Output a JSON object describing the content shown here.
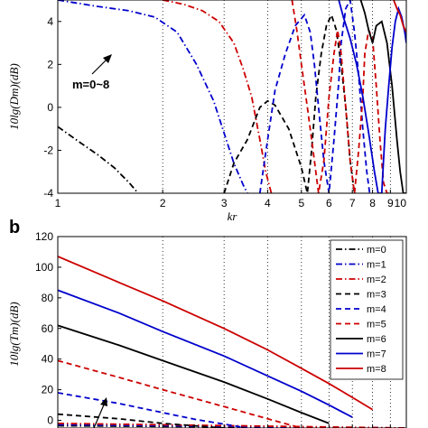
{
  "panel_labels": [
    "",
    "b"
  ],
  "chart_data": [
    {
      "type": "line",
      "panel": "a",
      "xscale": "log",
      "xlim": [
        1,
        10
      ],
      "ylim": [
        -4,
        5
      ],
      "xticks": [
        1,
        2,
        3,
        4,
        5,
        6,
        7,
        8,
        9,
        10
      ],
      "xtick_labels": [
        "1",
        "2",
        "3",
        "4",
        "5",
        "6",
        "7",
        "8",
        "9",
        "10"
      ],
      "yticks": [
        -4,
        -2,
        0,
        2,
        4
      ],
      "ytick_labels": [
        "-4",
        "-2",
        "0",
        "2",
        "4"
      ],
      "xlabel": "kr",
      "ylabel": "10lg(Dm)(dB)",
      "grid": "vertical dotted",
      "annotation": "m=0~8",
      "series": [
        {
          "name": "m=0",
          "color": "#000000",
          "dash": "dashdot",
          "x": [
            1.0,
            1.15,
            1.3,
            1.45,
            1.6,
            1.7
          ],
          "y": [
            -0.9,
            -1.6,
            -2.2,
            -2.8,
            -3.5,
            -4.0
          ]
        },
        {
          "name": "m=1",
          "color": "#0000cc",
          "dash": "dashdot",
          "x": [
            1.0,
            1.3,
            1.6,
            1.9,
            2.2,
            2.5,
            2.8,
            3.0,
            3.2,
            3.4,
            3.5
          ],
          "y": [
            5.0,
            4.7,
            4.5,
            4.2,
            3.5,
            2.0,
            0.3,
            -1.2,
            -2.6,
            -3.6,
            -4.0
          ]
        },
        {
          "name": "m=2",
          "color": "#cc0000",
          "dash": "dashdot",
          "x": [
            2.0,
            2.3,
            2.6,
            2.9,
            3.2,
            3.4,
            3.6,
            3.8,
            3.95,
            4.1
          ],
          "y": [
            5.0,
            4.8,
            4.5,
            4.0,
            3.0,
            1.8,
            0.5,
            -1.5,
            -3.0,
            -4.0
          ]
        },
        {
          "name": "m=3",
          "color": "#000000",
          "dash": "dashed",
          "x": [
            3.0,
            3.2,
            3.5,
            3.8,
            4.0,
            4.2,
            4.6,
            5.0,
            5.2,
            5.35,
            5.5,
            5.7,
            5.9,
            6.1,
            6.3,
            6.5,
            6.7,
            6.9,
            7.1,
            7.2
          ],
          "y": [
            -4.0,
            -2.6,
            -1.5,
            0.0,
            0.3,
            0.1,
            -1.0,
            -2.8,
            -4.0,
            -2.0,
            0.5,
            2.5,
            3.8,
            4.3,
            3.6,
            2.0,
            0.0,
            -2.5,
            -4.0,
            -4.0
          ]
        },
        {
          "name": "m=4",
          "color": "#0000cc",
          "dash": "dashed",
          "x": [
            3.8,
            4.0,
            4.2,
            4.5,
            4.8,
            5.1,
            5.3,
            5.45,
            5.6,
            5.8,
            6.0,
            6.2,
            6.4,
            6.5,
            6.7,
            6.9,
            7.1,
            7.3,
            7.5,
            7.7,
            7.85,
            8.0
          ],
          "y": [
            -4.0,
            -1.5,
            0.8,
            2.5,
            3.8,
            4.3,
            3.5,
            2.0,
            0.0,
            -2.5,
            -4.0,
            -1.5,
            1.2,
            3.0,
            4.6,
            5.0,
            3.5,
            1.5,
            -1.0,
            -3.0,
            -4.0,
            -4.0
          ]
        },
        {
          "name": "m=5",
          "color": "#cc0000",
          "dash": "dashed",
          "x": [
            4.7,
            4.85,
            5.0,
            5.2,
            5.4,
            5.6,
            5.8,
            6.0,
            6.2,
            6.35,
            6.5,
            6.7,
            6.9,
            7.1,
            7.3,
            7.5,
            7.6,
            7.8,
            8.0,
            8.2,
            8.4,
            8.6,
            8.8,
            9.0
          ],
          "y": [
            5.0,
            3.6,
            2.0,
            0.0,
            -2.0,
            -4.0,
            -2.5,
            0.5,
            2.5,
            3.6,
            2.5,
            0.0,
            -2.5,
            -4.0,
            -2.0,
            0.5,
            2.5,
            3.6,
            3.2,
            1.0,
            -1.5,
            -3.5,
            -4.0,
            -4.0
          ]
        },
        {
          "name": "m=6",
          "color": "#000000",
          "dash": "solid",
          "x": [
            7.4,
            7.6,
            7.8,
            8.0,
            8.2,
            8.5,
            8.8,
            9.1,
            9.4,
            9.6,
            9.8,
            10.0
          ],
          "y": [
            5.0,
            4.4,
            3.6,
            3.0,
            3.8,
            4.0,
            3.0,
            1.0,
            -1.5,
            -3.0,
            -4.0,
            -4.0
          ]
        },
        {
          "name": "m=7",
          "color": "#0000cc",
          "dash": "solid",
          "x": [
            6.4,
            6.6,
            6.9,
            7.2,
            7.5,
            7.8,
            8.1,
            8.3,
            8.5,
            8.6,
            8.7,
            8.9,
            9.1,
            9.3,
            9.5,
            9.7,
            9.9,
            10.0
          ],
          "y": [
            5.0,
            4.2,
            3.2,
            2.0,
            0.5,
            -1.2,
            -3.0,
            -4.0,
            -4.0,
            -2.5,
            -1.0,
            1.0,
            2.8,
            4.0,
            4.6,
            4.2,
            3.5,
            3.0
          ]
        },
        {
          "name": "m=8",
          "color": "#cc0000",
          "dash": "solid",
          "x": [
            9.2,
            9.4,
            9.6,
            9.8,
            10.0
          ],
          "y": [
            5.0,
            4.6,
            4.3,
            3.8,
            3.5
          ]
        }
      ]
    },
    {
      "type": "line",
      "panel": "b",
      "xscale": "log",
      "xlim": [
        1,
        10
      ],
      "ylim": [
        -5,
        120
      ],
      "xticks": [
        1,
        2,
        3,
        4,
        5,
        6,
        7,
        8,
        9,
        10
      ],
      "yticks": [
        0,
        20,
        40,
        60,
        80,
        100,
        120
      ],
      "ytick_labels": [
        "0",
        "20",
        "40",
        "60",
        "80",
        "100",
        "120"
      ],
      "ylabel": "10lg(Tm)(dB)",
      "grid": "vertical dotted",
      "legend_position": "top-right",
      "series": [
        {
          "name": "m=0",
          "color": "#000000",
          "dash": "dashdot",
          "x": [
            1.0,
            10.0
          ],
          "y": [
            -3.5,
            -5.0
          ]
        },
        {
          "name": "m=1",
          "color": "#0000cc",
          "dash": "dashdot",
          "x": [
            1.0,
            10.0
          ],
          "y": [
            -2.8,
            -5.0
          ]
        },
        {
          "name": "m=2",
          "color": "#cc0000",
          "dash": "dashdot",
          "x": [
            1.0,
            10.0
          ],
          "y": [
            -2.0,
            -5.0
          ]
        },
        {
          "name": "m=3",
          "color": "#000000",
          "dash": "dashed",
          "x": [
            1.0,
            1.5,
            2.0,
            3.0
          ],
          "y": [
            4.0,
            1.0,
            -2.0,
            -5.0
          ]
        },
        {
          "name": "m=4",
          "color": "#0000cc",
          "dash": "dashed",
          "x": [
            1.0,
            1.5,
            2.0,
            2.5,
            3.5
          ],
          "y": [
            18.0,
            11.0,
            5.0,
            0.5,
            -5.0
          ]
        },
        {
          "name": "m=5",
          "color": "#cc0000",
          "dash": "dashed",
          "x": [
            1.0,
            1.5,
            2.0,
            3.0,
            4.0,
            5.0
          ],
          "y": [
            39.0,
            28.0,
            20.0,
            9.0,
            1.0,
            -5.0
          ]
        },
        {
          "name": "m=6",
          "color": "#000000",
          "dash": "solid",
          "x": [
            1.0,
            1.5,
            2.0,
            3.0,
            4.0,
            5.0,
            6.0
          ],
          "y": [
            62.0,
            49.0,
            39.0,
            25.0,
            14.0,
            5.0,
            -2.0
          ]
        },
        {
          "name": "m=7",
          "color": "#0000cc",
          "dash": "solid",
          "x": [
            1.0,
            1.5,
            2.0,
            3.0,
            4.0,
            5.0,
            6.0,
            7.0
          ],
          "y": [
            85.0,
            70.0,
            58.0,
            42.0,
            29.0,
            19.0,
            10.0,
            2.0
          ]
        },
        {
          "name": "m=8",
          "color": "#cc0000",
          "dash": "solid",
          "x": [
            1.0,
            1.5,
            2.0,
            3.0,
            4.0,
            5.0,
            6.0,
            7.0,
            8.0
          ],
          "y": [
            107.0,
            90.0,
            78.0,
            60.0,
            46.0,
            34.0,
            24.0,
            15.0,
            7.0
          ]
        }
      ],
      "legend_entries": [
        "m=0",
        "m=1",
        "m=2",
        "m=3",
        "m=4",
        "m=5",
        "m=6",
        "m=7",
        "m=8"
      ]
    }
  ]
}
